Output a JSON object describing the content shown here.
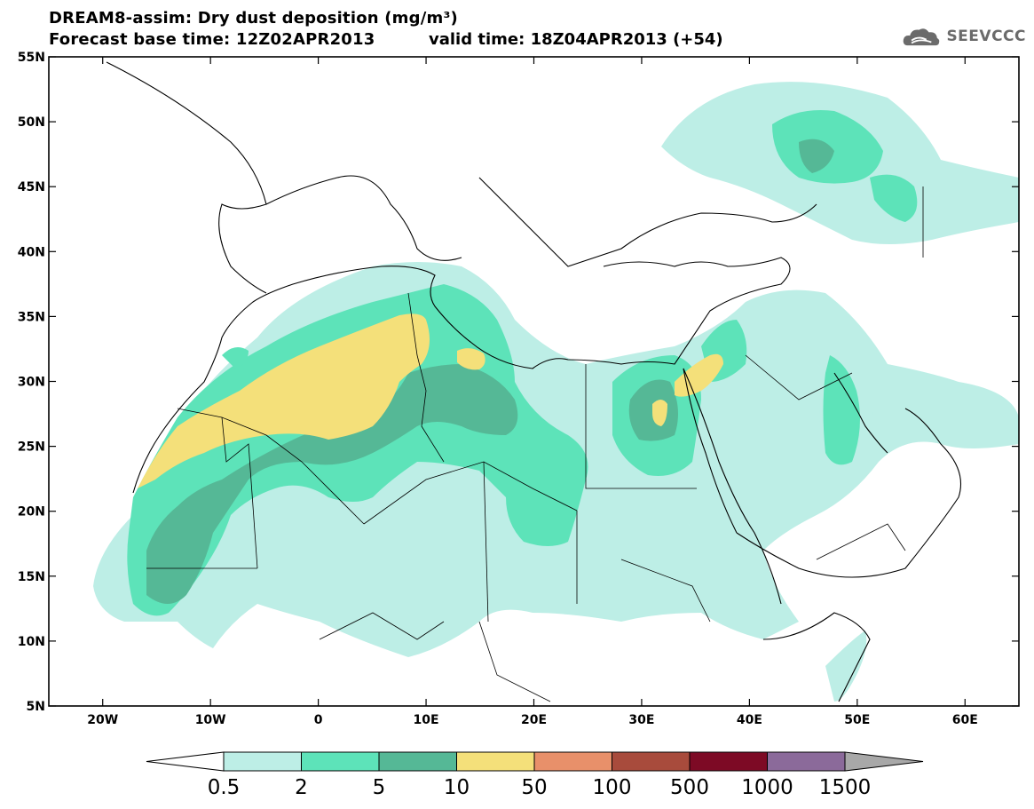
{
  "title": {
    "line1": "DREAM8-assim: Dry dust deposition (mg/m³)",
    "line2": "Forecast base time: 12Z02APR2013",
    "valid": "valid time: 18Z04APR2013 (+54)"
  },
  "logo": {
    "text": "SEEVCCC",
    "icon": "cloud-icon"
  },
  "map": {
    "lon_range": [
      -25,
      65
    ],
    "lat_range": [
      5,
      55
    ],
    "lat_ticks": [
      "55N",
      "50N",
      "45N",
      "40N",
      "35N",
      "30N",
      "25N",
      "20N",
      "15N",
      "10N",
      "5N"
    ],
    "lon_ticks": [
      "20W",
      "10W",
      "0",
      "10E",
      "20E",
      "30E",
      "40E",
      "50E",
      "60E"
    ],
    "lat_values": [
      55,
      50,
      45,
      40,
      35,
      30,
      25,
      20,
      15,
      10,
      5
    ],
    "lon_values": [
      -20,
      -10,
      0,
      10,
      20,
      30,
      40,
      50,
      60
    ]
  },
  "colorbar": {
    "labels": [
      "0.5",
      "2",
      "5",
      "10",
      "50",
      "100",
      "500",
      "1000",
      "1500"
    ],
    "colors": [
      "#ffffff",
      "#bdeee6",
      "#5de3b9",
      "#55b896",
      "#f4e07a",
      "#e8906a",
      "#a84b3c",
      "#7d0a25",
      "#8b6a9a",
      "#a8a8a8"
    ]
  }
}
